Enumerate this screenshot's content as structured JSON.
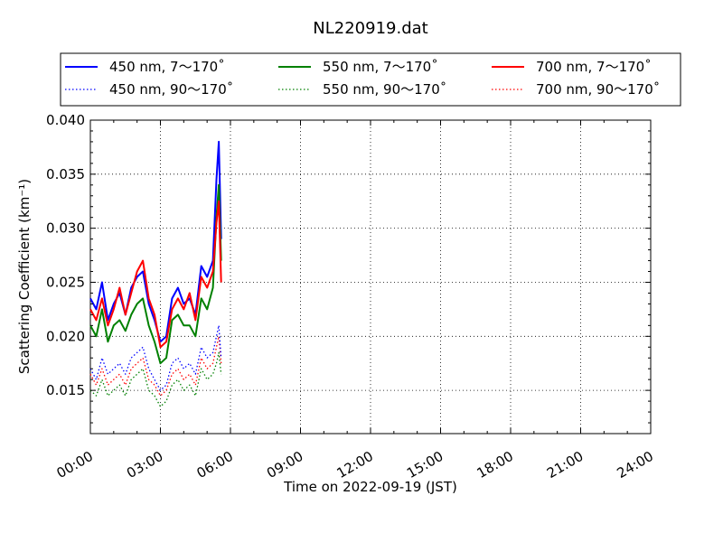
{
  "chart_data": {
    "type": "line",
    "title": "NL220919.dat",
    "xlabel": "Time on 2022-09-19 (JST)",
    "ylabel": "Scattering Coefficient (km⁻¹)",
    "xlim": [
      "00:00",
      "24:00"
    ],
    "ylim": [
      0.011,
      0.04
    ],
    "x_ticks": [
      "00:00",
      "03:00",
      "06:00",
      "09:00",
      "12:00",
      "15:00",
      "18:00",
      "21:00",
      "24:00"
    ],
    "y_ticks": [
      "0.015",
      "0.020",
      "0.025",
      "0.030",
      "0.035",
      "0.040"
    ],
    "grid": true,
    "legend_placement": "top, above plot",
    "series": [
      {
        "name": "450 nm, 7～170˚",
        "color": "#0000ff",
        "style": "solid",
        "x": [
          0.0,
          0.25,
          0.5,
          0.75,
          1.0,
          1.25,
          1.5,
          1.75,
          2.0,
          2.25,
          2.5,
          2.75,
          3.0,
          3.25,
          3.5,
          3.75,
          4.0,
          4.25,
          4.5,
          4.75,
          5.0,
          5.25,
          5.4,
          5.5,
          5.6
        ],
        "y": [
          0.0235,
          0.0225,
          0.025,
          0.0215,
          0.023,
          0.024,
          0.022,
          0.0245,
          0.0255,
          0.026,
          0.023,
          0.0215,
          0.0195,
          0.02,
          0.0235,
          0.0245,
          0.023,
          0.0235,
          0.022,
          0.0265,
          0.0255,
          0.027,
          0.0345,
          0.038,
          0.029
        ]
      },
      {
        "name": "550 nm, 7～170˚",
        "color": "#008000",
        "style": "solid",
        "x": [
          0.0,
          0.25,
          0.5,
          0.75,
          1.0,
          1.25,
          1.5,
          1.75,
          2.0,
          2.25,
          2.5,
          2.75,
          3.0,
          3.25,
          3.5,
          3.75,
          4.0,
          4.25,
          4.5,
          4.75,
          5.0,
          5.25,
          5.4,
          5.5,
          5.6
        ],
        "y": [
          0.021,
          0.02,
          0.0225,
          0.0195,
          0.021,
          0.0215,
          0.0205,
          0.022,
          0.023,
          0.0235,
          0.021,
          0.0195,
          0.0175,
          0.018,
          0.0215,
          0.022,
          0.021,
          0.021,
          0.02,
          0.0235,
          0.0225,
          0.0245,
          0.031,
          0.034,
          0.027
        ]
      },
      {
        "name": "700 nm, 7～170˚",
        "color": "#ff0000",
        "style": "solid",
        "x": [
          0.0,
          0.25,
          0.5,
          0.75,
          1.0,
          1.25,
          1.5,
          1.75,
          2.0,
          2.25,
          2.5,
          2.75,
          3.0,
          3.25,
          3.5,
          3.75,
          4.0,
          4.25,
          4.5,
          4.75,
          5.0,
          5.25,
          5.4,
          5.5,
          5.6
        ],
        "y": [
          0.0225,
          0.0215,
          0.0235,
          0.021,
          0.0225,
          0.0245,
          0.022,
          0.024,
          0.026,
          0.027,
          0.0235,
          0.022,
          0.019,
          0.0195,
          0.0225,
          0.0235,
          0.0225,
          0.024,
          0.0215,
          0.0255,
          0.0245,
          0.026,
          0.0305,
          0.0325,
          0.025
        ]
      },
      {
        "name": "450 nm, 90～170˚",
        "color": "#0000ff",
        "style": "dotted",
        "x": [
          0.0,
          0.25,
          0.5,
          0.75,
          1.0,
          1.25,
          1.5,
          1.75,
          2.0,
          2.25,
          2.5,
          2.75,
          3.0,
          3.25,
          3.5,
          3.75,
          4.0,
          4.25,
          4.5,
          4.75,
          5.0,
          5.25,
          5.4,
          5.5,
          5.6
        ],
        "y": [
          0.017,
          0.016,
          0.018,
          0.0165,
          0.017,
          0.0175,
          0.0165,
          0.018,
          0.0185,
          0.019,
          0.017,
          0.016,
          0.015,
          0.0155,
          0.0175,
          0.018,
          0.017,
          0.0175,
          0.0165,
          0.019,
          0.018,
          0.0185,
          0.02,
          0.021,
          0.018
        ]
      },
      {
        "name": "550 nm, 90～170˚",
        "color": "#008000",
        "style": "dotted",
        "x": [
          0.0,
          0.25,
          0.5,
          0.75,
          1.0,
          1.25,
          1.5,
          1.75,
          2.0,
          2.25,
          2.5,
          2.75,
          3.0,
          3.25,
          3.5,
          3.75,
          4.0,
          4.25,
          4.5,
          4.75,
          5.0,
          5.25,
          5.4,
          5.5,
          5.6
        ],
        "y": [
          0.015,
          0.0145,
          0.016,
          0.0145,
          0.015,
          0.0155,
          0.0145,
          0.016,
          0.0165,
          0.017,
          0.015,
          0.0145,
          0.0135,
          0.014,
          0.0155,
          0.016,
          0.015,
          0.0155,
          0.0145,
          0.017,
          0.016,
          0.0165,
          0.0175,
          0.0185,
          0.0165
        ]
      },
      {
        "name": "700 nm, 90～170˚",
        "color": "#ff0000",
        "style": "dotted",
        "x": [
          0.0,
          0.25,
          0.5,
          0.75,
          1.0,
          1.25,
          1.5,
          1.75,
          2.0,
          2.25,
          2.5,
          2.75,
          3.0,
          3.25,
          3.5,
          3.75,
          4.0,
          4.25,
          4.5,
          4.75,
          5.0,
          5.25,
          5.4,
          5.5,
          5.6
        ],
        "y": [
          0.0165,
          0.0155,
          0.017,
          0.0155,
          0.016,
          0.0165,
          0.0155,
          0.017,
          0.0175,
          0.018,
          0.016,
          0.0155,
          0.0145,
          0.015,
          0.0165,
          0.017,
          0.016,
          0.0165,
          0.0155,
          0.018,
          0.017,
          0.0175,
          0.019,
          0.02,
          0.0175
        ]
      }
    ]
  }
}
